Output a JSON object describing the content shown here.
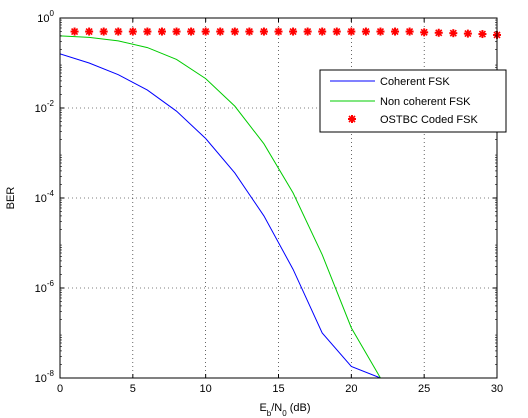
{
  "chart_data": {
    "type": "line",
    "title": "",
    "xlabel": {
      "main": "E",
      "sub1": "b",
      "mid": "/N",
      "sub2": "0",
      "tail": " (dB)"
    },
    "ylabel": "BER",
    "xlim": [
      0,
      30
    ],
    "ylim": [
      1e-08,
      1
    ],
    "yscale": "log",
    "grid": true,
    "legend_position": "upper-right",
    "x_ticks": [
      {
        "value": 0,
        "label": "0"
      },
      {
        "value": 5,
        "label": "5"
      },
      {
        "value": 10,
        "label": "10"
      },
      {
        "value": 15,
        "label": "15"
      },
      {
        "value": 20,
        "label": "20"
      },
      {
        "value": 25,
        "label": "25"
      },
      {
        "value": 30,
        "label": "30"
      }
    ],
    "y_ticks": [
      {
        "exp": 0,
        "base": "10",
        "sup": "0"
      },
      {
        "exp": -2,
        "base": "10",
        "sup": "-2"
      },
      {
        "exp": -4,
        "base": "10",
        "sup": "-4"
      },
      {
        "exp": -6,
        "base": "10",
        "sup": "-6"
      },
      {
        "exp": -8,
        "base": "10",
        "sup": "-8"
      }
    ],
    "series": [
      {
        "name": "Coherent FSK",
        "color": "#0000ff",
        "style": "line",
        "x": [
          0,
          2,
          4,
          6,
          8,
          10,
          12,
          14,
          16,
          18,
          20,
          22,
          22.5
        ],
        "y": [
          0.16,
          0.1,
          0.055,
          0.025,
          0.0085,
          0.0021,
          0.00036,
          4e-05,
          2.6e-06,
          1e-07,
          1.8e-08,
          1e-08,
          1e-08
        ]
      },
      {
        "name": "Non coherent FSK",
        "color": "#00cc00",
        "style": "line",
        "x": [
          0,
          2,
          4,
          6,
          8,
          10,
          12,
          14,
          16,
          18,
          20,
          22,
          24,
          25.3
        ],
        "y": [
          0.4,
          0.37,
          0.31,
          0.22,
          0.12,
          0.045,
          0.011,
          0.0016,
          0.00013,
          5.5e-06,
          1.3e-07,
          1e-08,
          1e-08,
          1e-08
        ]
      },
      {
        "name": "OSTBC Coded FSK",
        "color": "#ff0000",
        "style": "markers",
        "x": [
          1,
          2,
          3,
          4,
          5,
          6,
          7,
          8,
          9,
          10,
          11,
          12,
          13,
          14,
          15,
          16,
          17,
          18,
          19,
          20,
          21,
          22,
          23,
          24,
          25,
          26,
          27,
          28,
          29,
          30
        ],
        "y": [
          0.5,
          0.5,
          0.5,
          0.5,
          0.5,
          0.5,
          0.5,
          0.5,
          0.5,
          0.5,
          0.5,
          0.5,
          0.5,
          0.5,
          0.5,
          0.5,
          0.5,
          0.5,
          0.5,
          0.5,
          0.5,
          0.5,
          0.5,
          0.5,
          0.48,
          0.47,
          0.46,
          0.45,
          0.44,
          0.42
        ]
      }
    ]
  }
}
